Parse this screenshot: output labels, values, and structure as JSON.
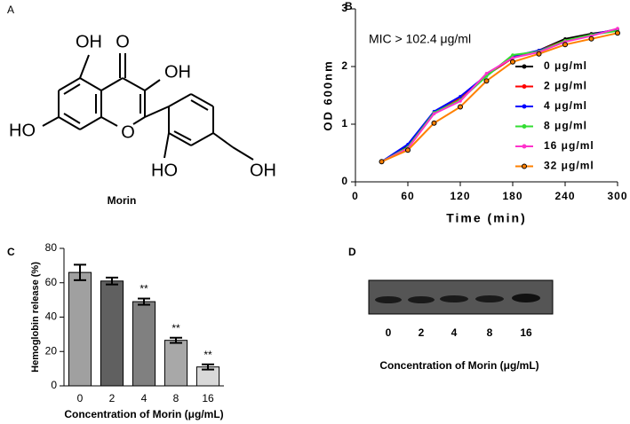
{
  "structure": {
    "panel": "A",
    "name": "Morin",
    "atoms": [
      "OH",
      "O",
      "OH",
      "HO",
      "O",
      "HO",
      "OH"
    ]
  },
  "chart_data": [
    {
      "type": "line",
      "panel": "B",
      "x_label": "Time (min)",
      "y_label": "OD 600nm",
      "annotation": "MIC > 102.4 μg/ml",
      "x": [
        30,
        60,
        90,
        120,
        150,
        180,
        210,
        240,
        270,
        300
      ],
      "series": [
        {
          "name": "0 μg/ml",
          "color": "#000000",
          "values": [
            0.35,
            0.62,
            1.2,
            1.45,
            1.85,
            2.15,
            2.28,
            2.48,
            2.57,
            2.63
          ]
        },
        {
          "name": "2 μg/ml",
          "color": "#ff0000",
          "values": [
            0.35,
            0.6,
            1.2,
            1.45,
            1.85,
            2.15,
            2.28,
            2.45,
            2.55,
            2.65
          ]
        },
        {
          "name": "4 μg/ml",
          "color": "#0000ff",
          "values": [
            0.35,
            0.65,
            1.22,
            1.48,
            1.85,
            2.18,
            2.28,
            2.43,
            2.55,
            2.65
          ]
        },
        {
          "name": "8 μg/ml",
          "color": "#33dd33",
          "values": [
            0.35,
            0.6,
            1.2,
            1.42,
            1.83,
            2.2,
            2.26,
            2.45,
            2.55,
            2.62
          ]
        },
        {
          "name": "16 μg/ml",
          "color": "#ff33cc",
          "values": [
            0.35,
            0.58,
            1.18,
            1.4,
            1.88,
            2.15,
            2.25,
            2.43,
            2.53,
            2.66
          ]
        },
        {
          "name": "32 μg/ml",
          "color": "#ff8000",
          "values": [
            0.35,
            0.55,
            1.02,
            1.3,
            1.75,
            2.08,
            2.22,
            2.38,
            2.48,
            2.58
          ]
        }
      ],
      "xlim": [
        0,
        300
      ],
      "xticks": [
        0,
        60,
        120,
        180,
        240,
        300
      ],
      "ylim": [
        0,
        3
      ],
      "yticks": [
        0,
        1,
        2,
        3
      ]
    },
    {
      "type": "bar",
      "panel": "C",
      "x_label": "Concentration of Morin (μg/mL)",
      "y_label": "Hemoglobin release (%)",
      "categories": [
        "0",
        "2",
        "4",
        "8",
        "16"
      ],
      "values": [
        66,
        61,
        49,
        26.5,
        11
      ],
      "errors": [
        4.5,
        2,
        1.8,
        1.5,
        1.5
      ],
      "colors": [
        "#a0a0a0",
        "#606060",
        "#808080",
        "#a8a8a8",
        "#d8d8d8"
      ],
      "annotations": [
        null,
        null,
        "**",
        "**",
        "**"
      ],
      "ylim": [
        0,
        80
      ],
      "yticks": [
        0,
        20,
        40,
        60,
        80
      ]
    }
  ],
  "blot": {
    "panel": "D",
    "categories": [
      "0",
      "2",
      "4",
      "8",
      "16"
    ],
    "x_label": "Concentration of Morin (μg/mL)"
  }
}
